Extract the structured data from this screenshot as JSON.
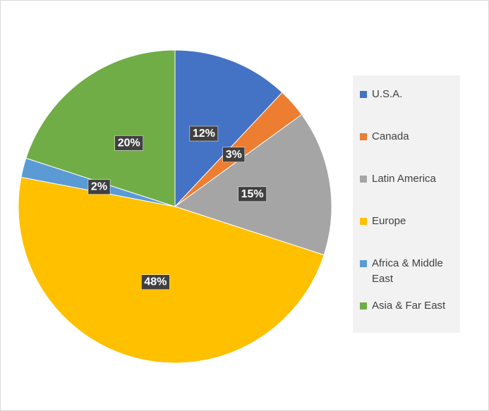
{
  "chart_data": {
    "type": "pie",
    "categories": [
      "U.S.A.",
      "Canada",
      "Latin America",
      "Europe",
      "Africa & Middle East",
      "Asia & Far East"
    ],
    "values": [
      12,
      3,
      15,
      48,
      2,
      20
    ],
    "value_labels": [
      "12%",
      "3%",
      "15%",
      "48%",
      "2%",
      "20%"
    ],
    "colors": [
      "#4472c4",
      "#ed7d31",
      "#a5a5a5",
      "#ffc000",
      "#5b9bd5",
      "#70ad47"
    ],
    "legend": "right"
  }
}
